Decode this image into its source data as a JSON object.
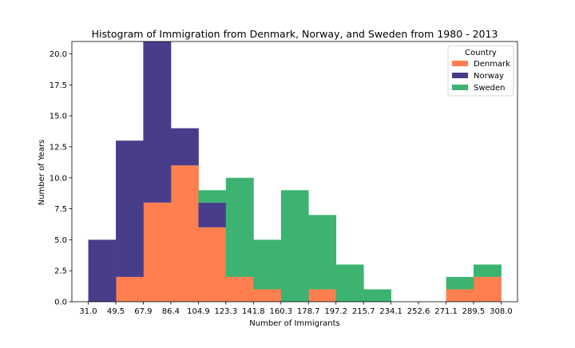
{
  "chart_data": {
    "type": "bar",
    "stacked": true,
    "title": "Histogram of Immigration from Denmark, Norway, and Sweden from 1980 - 2013",
    "xlabel": "Number of Immigrants",
    "ylabel": "Number of Years",
    "xlim": [
      20.0,
      319.0
    ],
    "ylim": [
      0,
      21
    ],
    "xticks": [
      "31.0",
      "49.5",
      "67.9",
      "86.4",
      "104.9",
      "123.3",
      "141.8",
      "160.3",
      "178.7",
      "197.2",
      "215.7",
      "234.1",
      "252.6",
      "271.1",
      "289.5",
      "308.0"
    ],
    "ytick_values": [
      0.0,
      2.5,
      5.0,
      7.5,
      10.0,
      12.5,
      15.0,
      17.5,
      20.0
    ],
    "ytick_labels": [
      "0.0",
      "2.5",
      "5.0",
      "7.5",
      "10.0",
      "12.5",
      "15.0",
      "17.5",
      "20.0"
    ],
    "bin_edges": [
      31.0,
      49.5,
      67.9,
      86.4,
      104.9,
      123.3,
      141.8,
      160.3,
      178.7,
      197.2,
      215.7,
      234.1,
      252.6,
      271.1,
      289.5,
      308.0
    ],
    "series": [
      {
        "name": "Denmark",
        "color": "#ff7f50",
        "values": [
          0,
          2,
          8,
          11,
          6,
          2,
          1,
          0,
          1,
          0,
          0,
          0,
          0,
          1,
          2
        ]
      },
      {
        "name": "Norway",
        "color": "#483d8b",
        "values": [
          5,
          11,
          13,
          3,
          2,
          0,
          0,
          0,
          0,
          0,
          0,
          0,
          0,
          0,
          0
        ]
      },
      {
        "name": "Sweden",
        "color": "#3cb371",
        "values": [
          0,
          0,
          0,
          0,
          1,
          8,
          4,
          9,
          6,
          3,
          1,
          0,
          0,
          1,
          1
        ]
      }
    ],
    "legend": {
      "title": "Country",
      "position": "top-right"
    },
    "grid": false
  }
}
